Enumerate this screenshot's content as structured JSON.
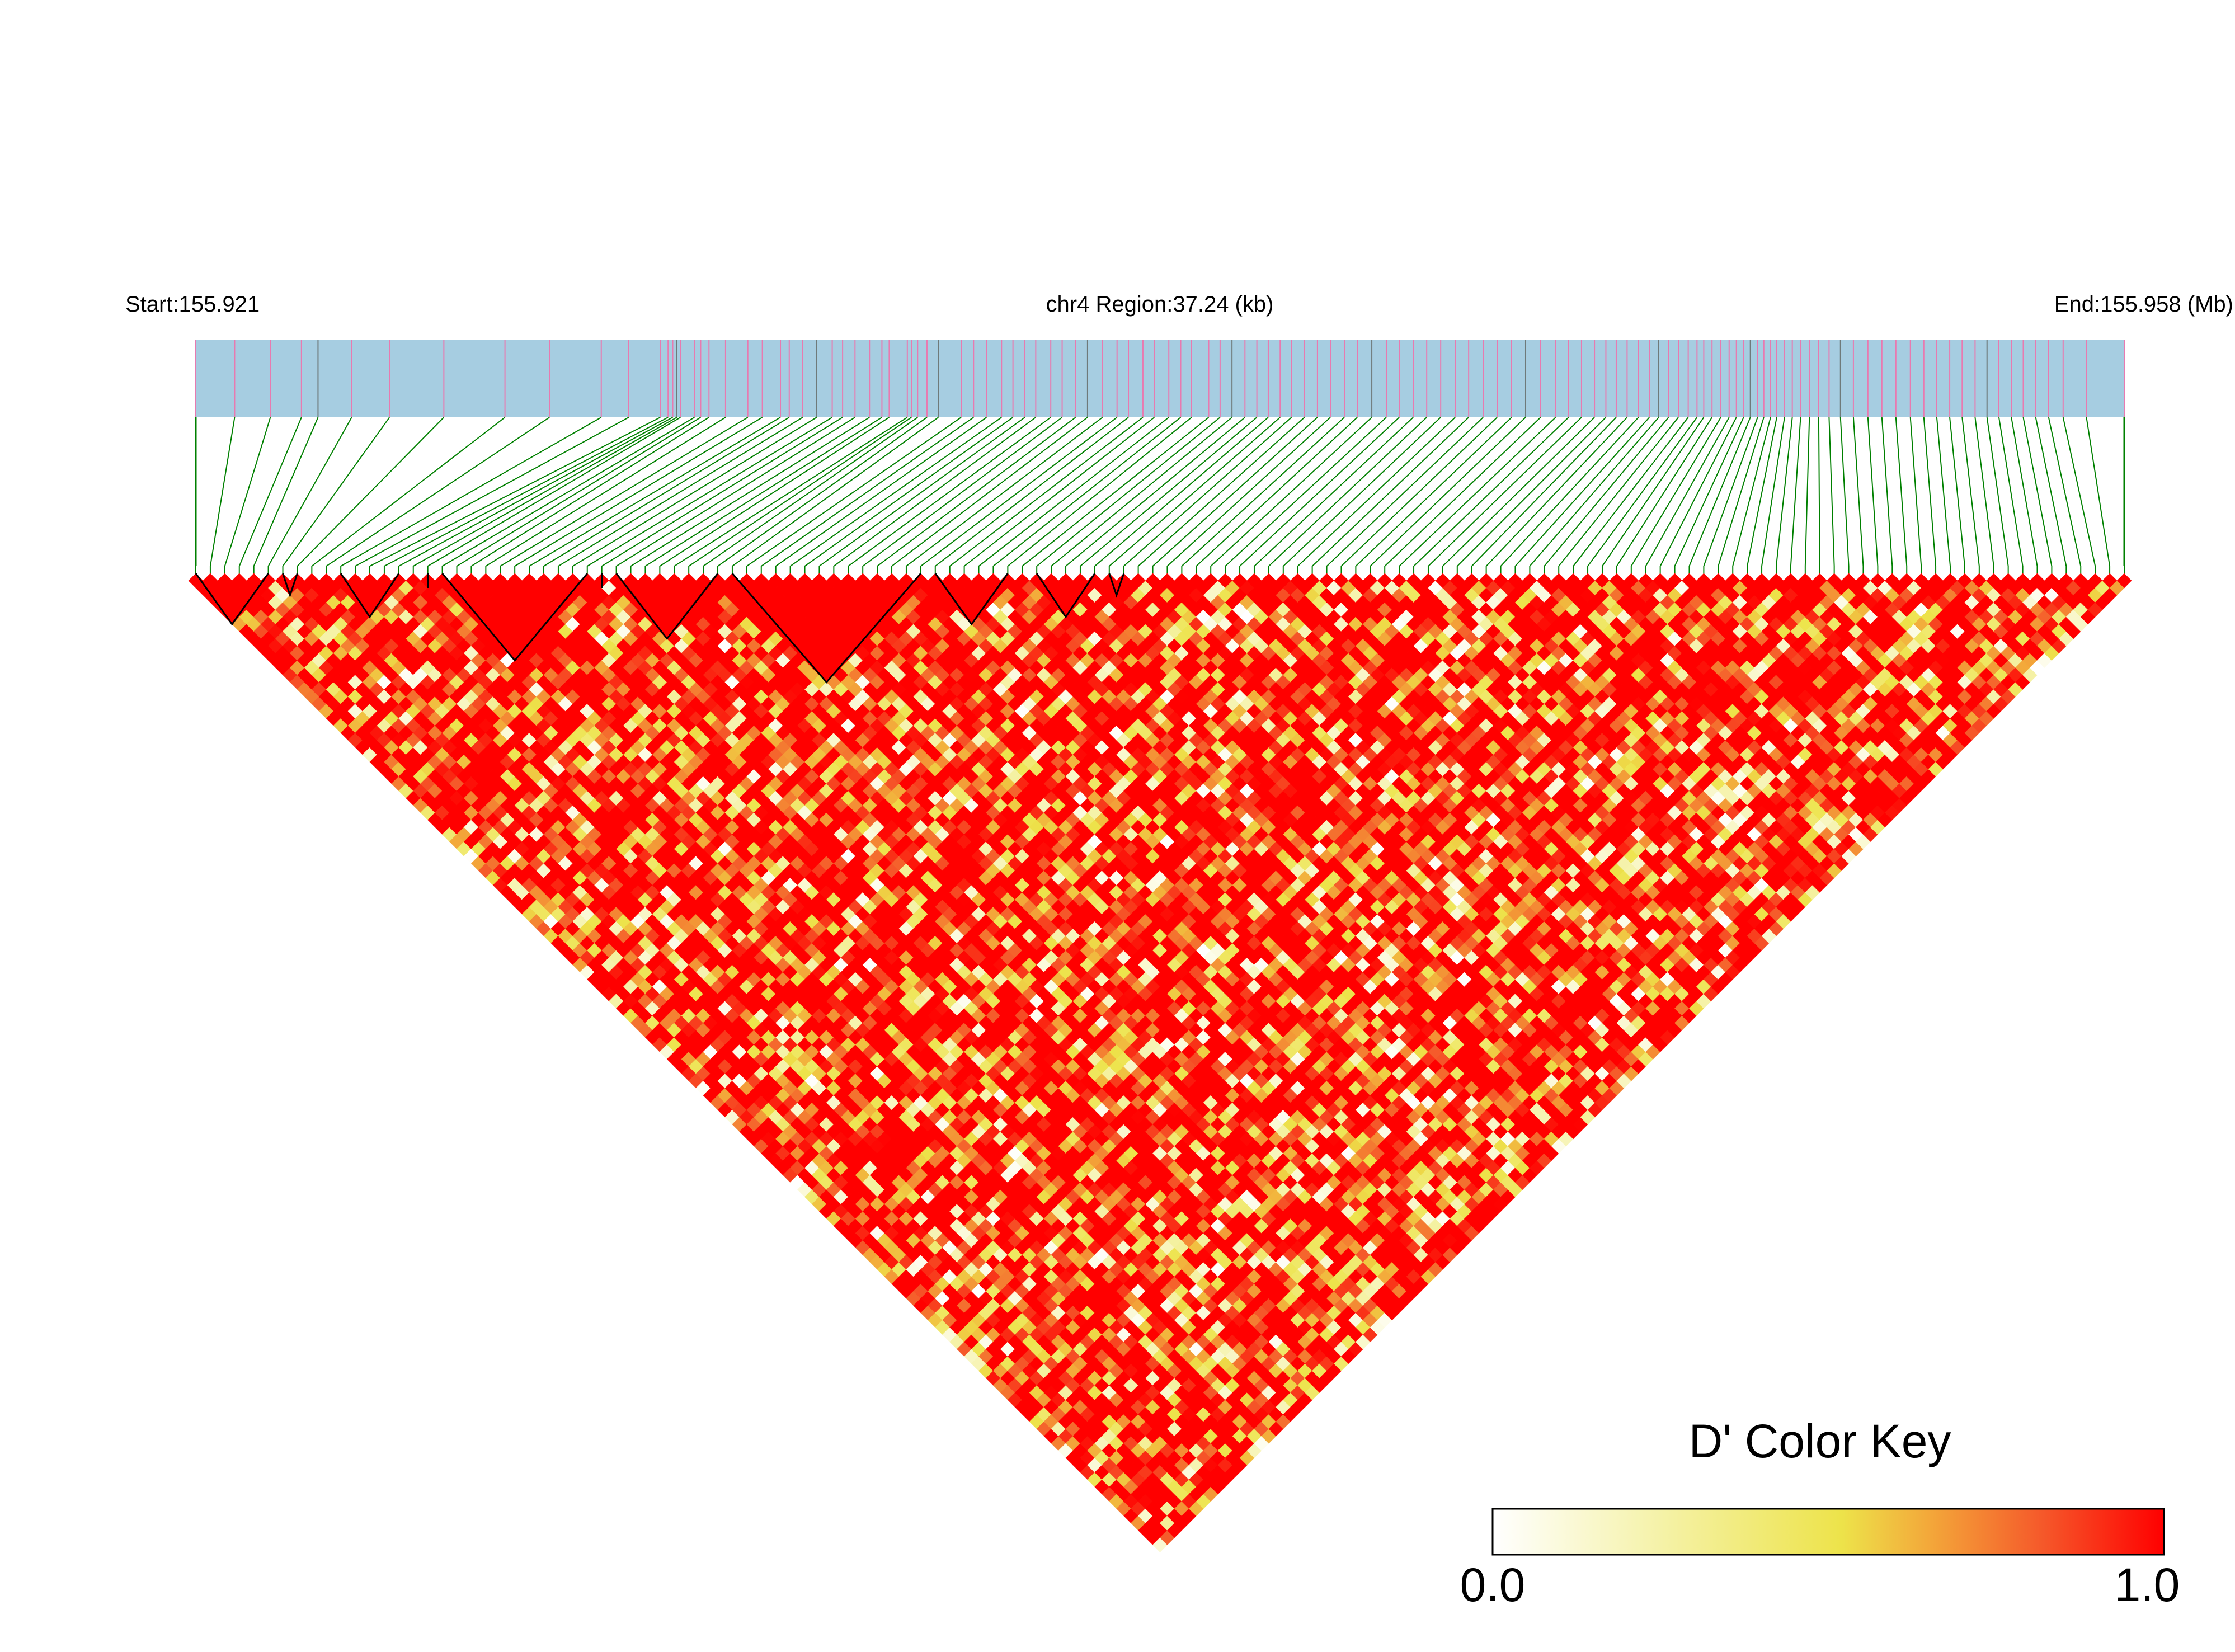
{
  "chart_data": {
    "type": "heatmap",
    "subtype": "ld-triangle",
    "start_label": "Start:155.921",
    "region_label": "chr4 Region:37.24 (kb)",
    "end_label": "End:155.958 (Mb)",
    "legend": {
      "title": "D' Color Key",
      "min_label": "0.0",
      "max_label": "1.0",
      "range": [
        0,
        1
      ],
      "placement": "bottom-right"
    },
    "snp_count": 134,
    "snp_positions_mb": [
      155.921,
      155.92175,
      155.92244,
      155.92304,
      155.92336,
      155.92401,
      155.92474,
      155.92579,
      155.92697,
      155.92783,
      155.92883,
      155.92936,
      155.92997,
      155.93012,
      155.93021,
      155.93029,
      155.93036,
      155.93063,
      155.93075,
      155.93091,
      155.93123,
      155.93166,
      155.93194,
      155.93229,
      155.93246,
      155.93272,
      155.93299,
      155.93329,
      155.93349,
      155.93373,
      155.93401,
      155.93425,
      155.93439,
      155.93474,
      155.93482,
      155.93494,
      155.93512,
      155.93534,
      155.93578,
      155.93602,
      155.93627,
      155.93656,
      155.93678,
      155.93701,
      155.93722,
      155.93751,
      155.93773,
      155.93799,
      155.93822,
      155.93851,
      155.93879,
      155.93901,
      155.93929,
      155.93951,
      155.93979,
      155.94002,
      155.94023,
      155.94056,
      155.94078,
      155.94101,
      155.94126,
      155.94149,
      155.94171,
      155.94194,
      155.94216,
      155.94241,
      155.94266,
      155.94291,
      155.94318,
      155.94343,
      155.94371,
      155.94399,
      155.94424,
      155.94451,
      155.94477,
      155.94504,
      155.94532,
      155.94558,
      155.94586,
      155.94613,
      155.94641,
      155.94668,
      155.94697,
      155.94726,
      155.94751,
      155.94776,
      155.94801,
      155.94823,
      155.94843,
      155.94864,
      155.94886,
      155.94907,
      155.94925,
      155.94944,
      155.94963,
      155.94982,
      155.94999,
      155.95012,
      155.95028,
      155.95045,
      155.95061,
      155.95075,
      155.95089,
      155.95102,
      155.95116,
      155.95128,
      155.95141,
      155.95153,
      155.95168,
      155.95183,
      155.95199,
      155.95216,
      155.95234,
      155.95254,
      155.95276,
      155.95301,
      155.95329,
      155.95356,
      155.95383,
      155.95411,
      155.95437,
      155.95462,
      155.95487,
      155.95511,
      155.95536,
      155.95559,
      155.95582,
      155.95606,
      155.95629,
      155.95653,
      155.95678,
      155.95706,
      155.95751,
      155.95824
    ],
    "ld_blocks_snp_index": [
      [
        0,
        5
      ],
      [
        6,
        7
      ],
      [
        10,
        14
      ],
      [
        16,
        16
      ],
      [
        17,
        27
      ],
      [
        28,
        28
      ],
      [
        29,
        36
      ],
      [
        37,
        50
      ],
      [
        51,
        56
      ],
      [
        58,
        62
      ],
      [
        63,
        64
      ]
    ],
    "colors": {
      "track_fill": "#a6cde1",
      "snp_tick": "#e87ab0",
      "connector": "#008000",
      "high": "#ff0000",
      "block_outline": "#000000"
    },
    "d_prime_rule": "cells inside haplotype blocks are D' 1.0; see script for full matrix"
  }
}
